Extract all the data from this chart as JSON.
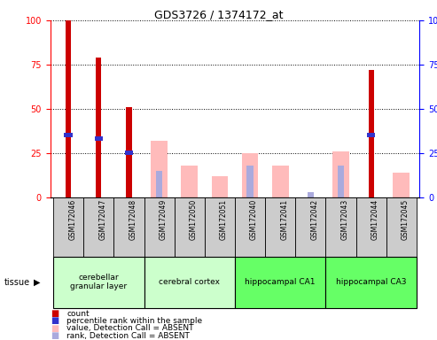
{
  "title": "GDS3726 / 1374172_at",
  "samples": [
    "GSM172046",
    "GSM172047",
    "GSM172048",
    "GSM172049",
    "GSM172050",
    "GSM172051",
    "GSM172040",
    "GSM172041",
    "GSM172042",
    "GSM172043",
    "GSM172044",
    "GSM172045"
  ],
  "count_values": [
    100,
    79,
    51,
    0,
    0,
    0,
    0,
    0,
    0,
    0,
    72,
    0
  ],
  "percentile_rank": [
    35,
    33,
    25,
    0,
    0,
    0,
    0,
    0,
    0,
    0,
    35,
    0
  ],
  "absent_value": [
    0,
    0,
    0,
    32,
    18,
    12,
    25,
    18,
    0,
    26,
    0,
    14
  ],
  "absent_rank": [
    0,
    0,
    0,
    15,
    0,
    0,
    18,
    0,
    3,
    18,
    0,
    0
  ],
  "tissues": [
    {
      "label": "cerebellar\ngranular layer",
      "start": 0,
      "end": 3,
      "color": "#ccffcc"
    },
    {
      "label": "cerebral cortex",
      "start": 3,
      "end": 6,
      "color": "#ccffcc"
    },
    {
      "label": "hippocampal CA1",
      "start": 6,
      "end": 9,
      "color": "#66ff66"
    },
    {
      "label": "hippocampal CA3",
      "start": 9,
      "end": 12,
      "color": "#66ff66"
    }
  ],
  "ylim": [
    0,
    100
  ],
  "count_color": "#cc0000",
  "rank_color": "#3333cc",
  "absent_value_color": "#ffbbbb",
  "absent_rank_color": "#aaaadd",
  "sample_box_color": "#cccccc",
  "legend_labels": [
    "count",
    "percentile rank within the sample",
    "value, Detection Call = ABSENT",
    "rank, Detection Call = ABSENT"
  ]
}
